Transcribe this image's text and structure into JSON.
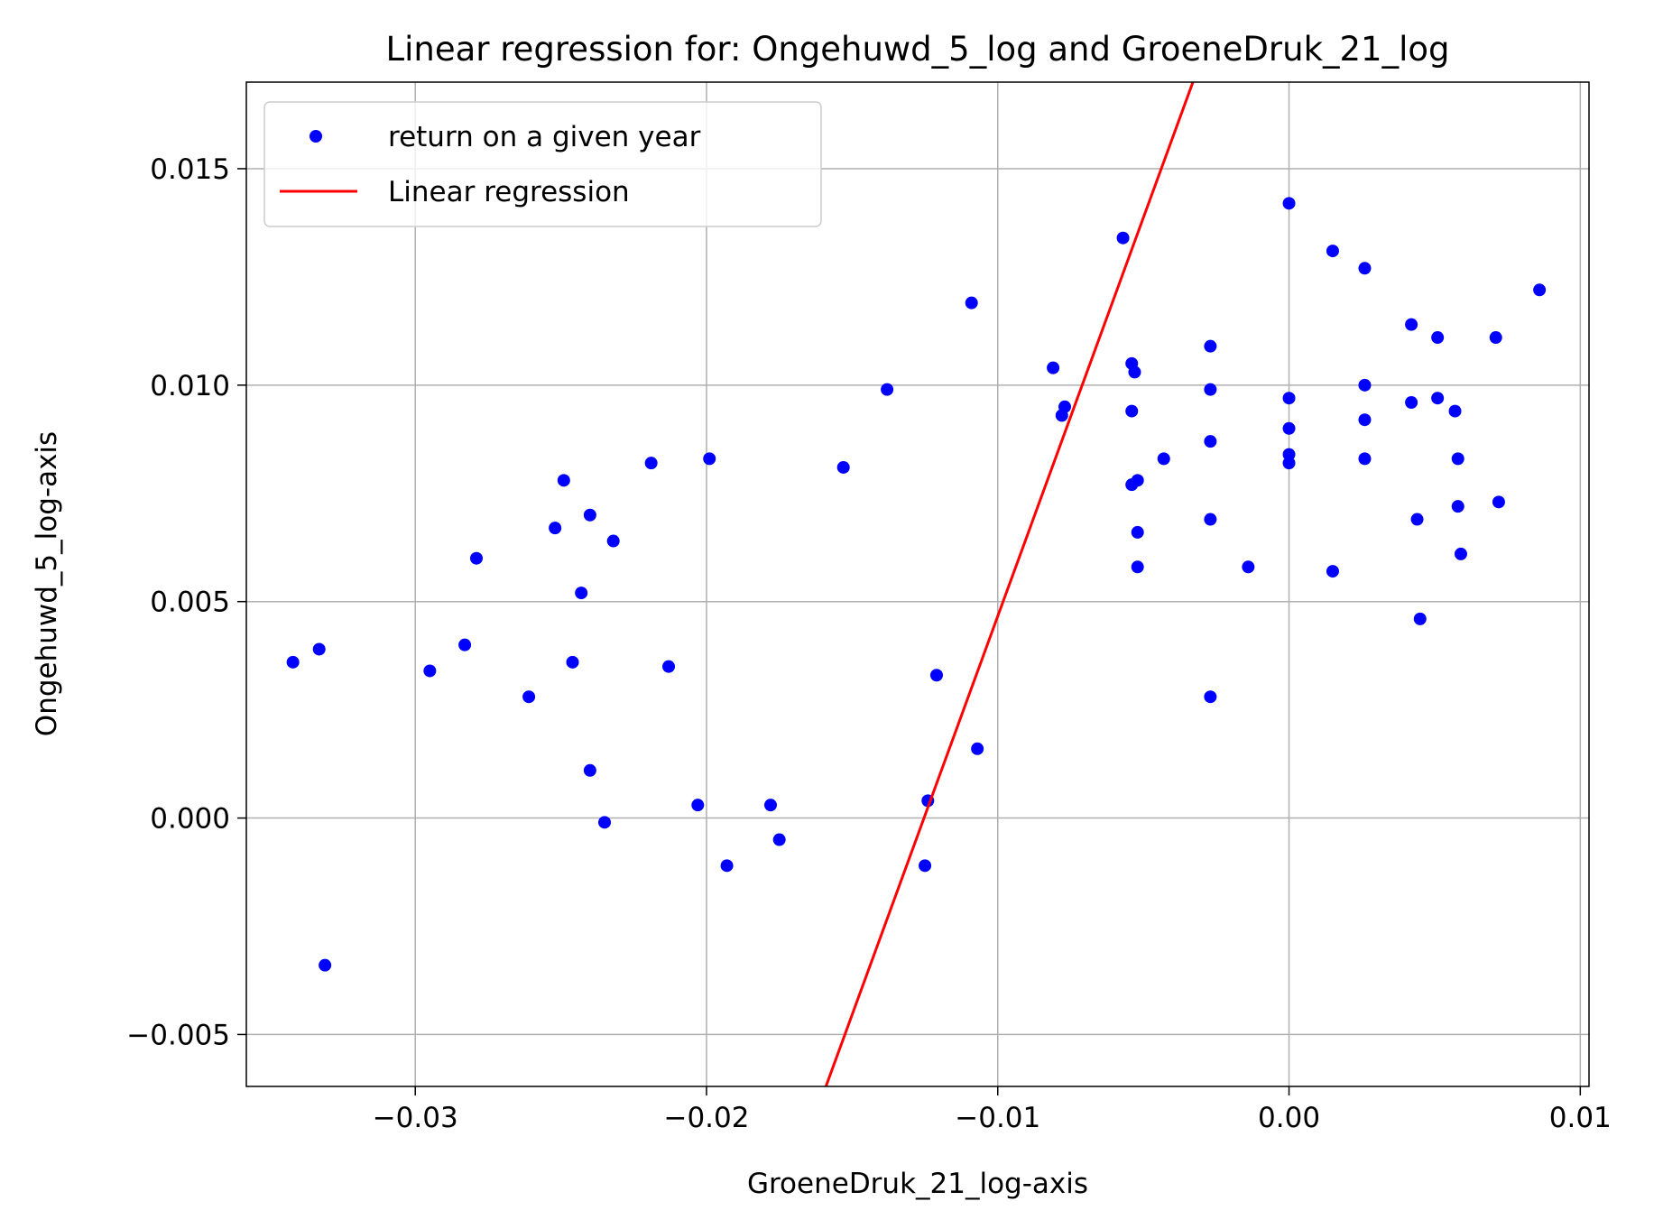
{
  "chart_data": {
    "type": "scatter",
    "title": "Linear regression for: Ongehuwd_5_log and GroeneDruk_21_log",
    "xlabel": "GroeneDruk_21_log-axis",
    "ylabel": "Ongehuwd_5_log-axis",
    "xlim": [
      -0.0358,
      0.0103
    ],
    "ylim": [
      -0.0062,
      0.017
    ],
    "xticks": [
      -0.03,
      -0.02,
      -0.01,
      0.0,
      0.01
    ],
    "xtick_labels": [
      "−0.03",
      "−0.02",
      "−0.01",
      "0.00",
      "0.01"
    ],
    "yticks": [
      -0.005,
      0.0,
      0.005,
      0.01,
      0.015
    ],
    "ytick_labels": [
      "−0.005",
      "0.000",
      "0.005",
      "0.010",
      "0.015"
    ],
    "grid": true,
    "legend_position": "upper-left",
    "series": [
      {
        "name": "return on a given year",
        "kind": "scatter",
        "color": "#0000ff",
        "points": [
          [
            -0.0342,
            0.0036
          ],
          [
            -0.0333,
            0.0039
          ],
          [
            -0.0331,
            -0.0034
          ],
          [
            -0.0295,
            0.0034
          ],
          [
            -0.0283,
            0.004
          ],
          [
            -0.0279,
            0.006
          ],
          [
            -0.0261,
            0.0028
          ],
          [
            -0.0252,
            0.0067
          ],
          [
            -0.0249,
            0.0078
          ],
          [
            -0.0246,
            0.0036
          ],
          [
            -0.0243,
            0.0052
          ],
          [
            -0.024,
            0.0011
          ],
          [
            -0.024,
            0.007
          ],
          [
            -0.0235,
            -0.0001
          ],
          [
            -0.0232,
            0.0064
          ],
          [
            -0.0219,
            0.0082
          ],
          [
            -0.0213,
            0.0035
          ],
          [
            -0.0203,
            0.0003
          ],
          [
            -0.0199,
            0.0083
          ],
          [
            -0.0193,
            -0.0011
          ],
          [
            -0.0178,
            0.0003
          ],
          [
            -0.0175,
            -0.0005
          ],
          [
            -0.0153,
            0.0081
          ],
          [
            -0.0138,
            0.0099
          ],
          [
            -0.0125,
            -0.0011
          ],
          [
            -0.0124,
            0.0004
          ],
          [
            -0.0121,
            0.0033
          ],
          [
            -0.0109,
            0.0119
          ],
          [
            -0.0107,
            0.0016
          ],
          [
            -0.0081,
            0.0104
          ],
          [
            -0.0078,
            0.0093
          ],
          [
            -0.0077,
            0.0095
          ],
          [
            -0.0057,
            0.0134
          ],
          [
            -0.0054,
            0.0105
          ],
          [
            -0.0054,
            0.0094
          ],
          [
            -0.0054,
            0.0077
          ],
          [
            -0.0053,
            0.0103
          ],
          [
            -0.0052,
            0.0078
          ],
          [
            -0.0052,
            0.0066
          ],
          [
            -0.0052,
            0.0058
          ],
          [
            -0.0043,
            0.0083
          ],
          [
            -0.0027,
            0.0109
          ],
          [
            -0.0027,
            0.0099
          ],
          [
            -0.0027,
            0.0087
          ],
          [
            -0.0027,
            0.0069
          ],
          [
            -0.0027,
            0.0028
          ],
          [
            -0.0014,
            0.0058
          ],
          [
            0.0,
            0.0142
          ],
          [
            0.0,
            0.0097
          ],
          [
            0.0,
            0.009
          ],
          [
            0.0,
            0.0084
          ],
          [
            0.0,
            0.0082
          ],
          [
            0.0015,
            0.0131
          ],
          [
            0.0015,
            0.0057
          ],
          [
            0.0026,
            0.0127
          ],
          [
            0.0026,
            0.01
          ],
          [
            0.0026,
            0.0092
          ],
          [
            0.0026,
            0.0083
          ],
          [
            0.0042,
            0.0114
          ],
          [
            0.0042,
            0.0096
          ],
          [
            0.0044,
            0.0069
          ],
          [
            0.0045,
            0.0046
          ],
          [
            0.0051,
            0.0111
          ],
          [
            0.0051,
            0.0097
          ],
          [
            0.0057,
            0.0094
          ],
          [
            0.0058,
            0.0083
          ],
          [
            0.0058,
            0.0072
          ],
          [
            0.0059,
            0.0061
          ],
          [
            0.0071,
            0.0111
          ],
          [
            0.0072,
            0.0073
          ],
          [
            0.0086,
            0.0122
          ]
        ]
      },
      {
        "name": "Linear regression",
        "kind": "line",
        "color": "#ff0000",
        "x": [
          -0.0159,
          -0.0033
        ],
        "y": [
          -0.0062,
          0.017
        ]
      }
    ]
  }
}
